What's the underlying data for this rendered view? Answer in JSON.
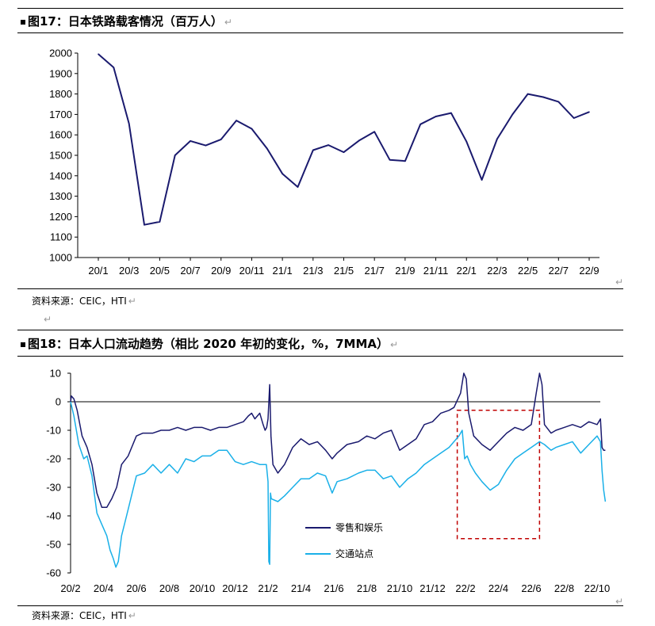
{
  "chart1": {
    "caption": "图17：日本铁路载客情况（百万人）",
    "source": "资料来源：CEIC，HTI",
    "chart_data": {
      "type": "line",
      "title": "图17：日本铁路载客情况（百万人）",
      "xlabel": "",
      "ylabel": "",
      "ylim": [
        1000,
        2000
      ],
      "yticks": [
        1000,
        1100,
        1200,
        1300,
        1400,
        1500,
        1600,
        1700,
        1800,
        1900,
        2000
      ],
      "xtick_labels": [
        "20/1",
        "20/3",
        "20/5",
        "20/7",
        "20/9",
        "20/11",
        "21/1",
        "21/3",
        "21/5",
        "21/7",
        "21/9",
        "21/11",
        "22/1",
        "22/3",
        "22/5",
        "22/7",
        "22/9"
      ],
      "x": [
        "20/1",
        "20/2",
        "20/3",
        "20/4",
        "20/5",
        "20/6",
        "20/7",
        "20/8",
        "20/9",
        "20/10",
        "20/11",
        "20/12",
        "21/1",
        "21/2",
        "21/3",
        "21/4",
        "21/5",
        "21/6",
        "21/7",
        "21/8",
        "21/9",
        "21/10",
        "21/11",
        "21/12",
        "22/1",
        "22/2",
        "22/3",
        "22/4",
        "22/5",
        "22/6",
        "22/7",
        "22/8",
        "22/9"
      ],
      "series": [
        {
          "name": "铁路载客",
          "color": "#1a1a6e",
          "values": [
            1995,
            1930,
            1655,
            1160,
            1175,
            1500,
            1570,
            1548,
            1578,
            1670,
            1630,
            1533,
            1410,
            1345,
            1525,
            1550,
            1515,
            1572,
            1615,
            1478,
            1472,
            1652,
            1690,
            1707,
            1567,
            1380,
            1580,
            1700,
            1800,
            1785,
            1762,
            1682,
            1712
          ]
        }
      ]
    }
  },
  "chart2": {
    "caption": "图18：日本人口流动趋势（相比 2020 年初的变化，%，7MMA）",
    "source": "资料来源：CEIC，HTI",
    "chart_data": {
      "type": "line",
      "title": "图18：日本人口流动趋势（相比 2020 年初的变化，%，7MMA）",
      "xlabel": "",
      "ylabel": "",
      "ylim": [
        -60,
        10
      ],
      "yticks": [
        -60,
        -50,
        -40,
        -30,
        -20,
        -10,
        0,
        10
      ],
      "xtick_labels": [
        "20/2",
        "20/4",
        "20/6",
        "20/8",
        "20/10",
        "20/12",
        "21/2",
        "21/4",
        "21/6",
        "21/8",
        "21/10",
        "21/12",
        "22/2",
        "22/4",
        "22/6",
        "22/8",
        "22/10"
      ],
      "x_range_months": [
        0,
        32.5
      ],
      "series": [
        {
          "name": "零售和娱乐",
          "color": "#1a1a6e",
          "points": [
            [
              0,
              0
            ],
            [
              0.05,
              2
            ],
            [
              0.2,
              1
            ],
            [
              0.4,
              -3
            ],
            [
              0.7,
              -12
            ],
            [
              1.0,
              -16
            ],
            [
              1.3,
              -22
            ],
            [
              1.6,
              -32
            ],
            [
              1.9,
              -37
            ],
            [
              2.2,
              -37
            ],
            [
              2.5,
              -34
            ],
            [
              2.8,
              -30
            ],
            [
              3.1,
              -22
            ],
            [
              3.5,
              -19
            ],
            [
              4.0,
              -12
            ],
            [
              4.4,
              -11
            ],
            [
              5.0,
              -11
            ],
            [
              5.5,
              -10
            ],
            [
              6.0,
              -10
            ],
            [
              6.5,
              -9
            ],
            [
              7.0,
              -10
            ],
            [
              7.5,
              -9
            ],
            [
              8.0,
              -9
            ],
            [
              8.5,
              -10
            ],
            [
              9.0,
              -9
            ],
            [
              9.5,
              -9
            ],
            [
              10.0,
              -8
            ],
            [
              10.5,
              -7
            ],
            [
              10.8,
              -5
            ],
            [
              11.0,
              -4
            ],
            [
              11.2,
              -6
            ],
            [
              11.5,
              -4
            ],
            [
              11.7,
              -8
            ],
            [
              11.82,
              -10
            ],
            [
              11.92,
              -9
            ],
            [
              12.0,
              -6
            ],
            [
              12.1,
              6
            ],
            [
              12.18,
              -12
            ],
            [
              12.3,
              -22
            ],
            [
              12.6,
              -25
            ],
            [
              13.0,
              -22
            ],
            [
              13.5,
              -16
            ],
            [
              14.0,
              -13
            ],
            [
              14.5,
              -15
            ],
            [
              15.0,
              -14
            ],
            [
              15.5,
              -17
            ],
            [
              15.9,
              -20
            ],
            [
              16.2,
              -18
            ],
            [
              16.8,
              -15
            ],
            [
              17.5,
              -14
            ],
            [
              18.0,
              -12
            ],
            [
              18.5,
              -13
            ],
            [
              19.0,
              -11
            ],
            [
              19.5,
              -10
            ],
            [
              20.0,
              -17
            ],
            [
              20.5,
              -15
            ],
            [
              21.0,
              -13
            ],
            [
              21.5,
              -8
            ],
            [
              22.0,
              -7
            ],
            [
              22.5,
              -4
            ],
            [
              23.0,
              -3
            ],
            [
              23.3,
              -2
            ],
            [
              23.7,
              3
            ],
            [
              23.9,
              10
            ],
            [
              24.05,
              8
            ],
            [
              24.2,
              -4
            ],
            [
              24.5,
              -12
            ],
            [
              25.0,
              -15
            ],
            [
              25.5,
              -17
            ],
            [
              26.0,
              -14
            ],
            [
              26.5,
              -11
            ],
            [
              27.0,
              -9
            ],
            [
              27.5,
              -10
            ],
            [
              28.0,
              -8
            ],
            [
              28.3,
              3
            ],
            [
              28.5,
              10
            ],
            [
              28.65,
              6
            ],
            [
              28.8,
              -8
            ],
            [
              29.2,
              -11
            ],
            [
              29.5,
              -10
            ],
            [
              30.0,
              -9
            ],
            [
              30.5,
              -8
            ],
            [
              31.0,
              -9
            ],
            [
              31.5,
              -7
            ],
            [
              32.0,
              -8
            ],
            [
              32.2,
              -6
            ],
            [
              32.3,
              -16
            ],
            [
              32.4,
              -17
            ],
            [
              32.5,
              -17
            ]
          ]
        },
        {
          "name": "交通站点",
          "color": "#1ab0e8",
          "points": [
            [
              0,
              0
            ],
            [
              0.2,
              -5
            ],
            [
              0.5,
              -15
            ],
            [
              0.8,
              -20
            ],
            [
              1.0,
              -19
            ],
            [
              1.3,
              -26
            ],
            [
              1.6,
              -39
            ],
            [
              1.9,
              -43
            ],
            [
              2.2,
              -47
            ],
            [
              2.4,
              -52
            ],
            [
              2.6,
              -55
            ],
            [
              2.75,
              -58
            ],
            [
              2.9,
              -56
            ],
            [
              3.1,
              -47
            ],
            [
              3.4,
              -40
            ],
            [
              3.7,
              -33
            ],
            [
              4.0,
              -26
            ],
            [
              4.5,
              -25
            ],
            [
              5.0,
              -22
            ],
            [
              5.5,
              -25
            ],
            [
              6.0,
              -22
            ],
            [
              6.5,
              -25
            ],
            [
              7.0,
              -20
            ],
            [
              7.5,
              -21
            ],
            [
              8.0,
              -19
            ],
            [
              8.5,
              -19
            ],
            [
              9.0,
              -17
            ],
            [
              9.5,
              -17
            ],
            [
              10.0,
              -21
            ],
            [
              10.5,
              -22
            ],
            [
              11.0,
              -21
            ],
            [
              11.5,
              -22
            ],
            [
              11.9,
              -22
            ],
            [
              12.0,
              -28
            ],
            [
              12.05,
              -56
            ],
            [
              12.1,
              -57
            ],
            [
              12.15,
              -32
            ],
            [
              12.2,
              -34
            ],
            [
              12.6,
              -35
            ],
            [
              13.0,
              -33
            ],
            [
              13.5,
              -30
            ],
            [
              14.0,
              -27
            ],
            [
              14.5,
              -27
            ],
            [
              15.0,
              -25
            ],
            [
              15.5,
              -26
            ],
            [
              15.9,
              -32
            ],
            [
              16.2,
              -28
            ],
            [
              16.8,
              -27
            ],
            [
              17.5,
              -25
            ],
            [
              18.0,
              -24
            ],
            [
              18.5,
              -24
            ],
            [
              19.0,
              -27
            ],
            [
              19.5,
              -26
            ],
            [
              20.0,
              -30
            ],
            [
              20.5,
              -27
            ],
            [
              21.0,
              -25
            ],
            [
              21.5,
              -22
            ],
            [
              22.0,
              -20
            ],
            [
              22.5,
              -18
            ],
            [
              23.0,
              -16
            ],
            [
              23.3,
              -14
            ],
            [
              23.6,
              -12
            ],
            [
              23.8,
              -10
            ],
            [
              23.95,
              -20
            ],
            [
              24.1,
              -19
            ],
            [
              24.3,
              -22
            ],
            [
              24.6,
              -25
            ],
            [
              25.0,
              -28
            ],
            [
              25.5,
              -31
            ],
            [
              26.0,
              -29
            ],
            [
              26.5,
              -24
            ],
            [
              27.0,
              -20
            ],
            [
              27.5,
              -18
            ],
            [
              28.0,
              -16
            ],
            [
              28.5,
              -14
            ],
            [
              28.8,
              -15
            ],
            [
              29.2,
              -17
            ],
            [
              29.5,
              -16
            ],
            [
              30.0,
              -15
            ],
            [
              30.5,
              -14
            ],
            [
              31.0,
              -18
            ],
            [
              31.5,
              -15
            ],
            [
              32.0,
              -12
            ],
            [
              32.2,
              -14
            ],
            [
              32.3,
              -24
            ],
            [
              32.4,
              -31
            ],
            [
              32.5,
              -35
            ]
          ]
        }
      ],
      "legend_position": "center-bottom",
      "annotations": [
        {
          "type": "dashed-box",
          "color": "#c00000",
          "x_months": [
            23.5,
            28.5
          ],
          "y_range": [
            -48,
            -3
          ]
        }
      ]
    }
  }
}
